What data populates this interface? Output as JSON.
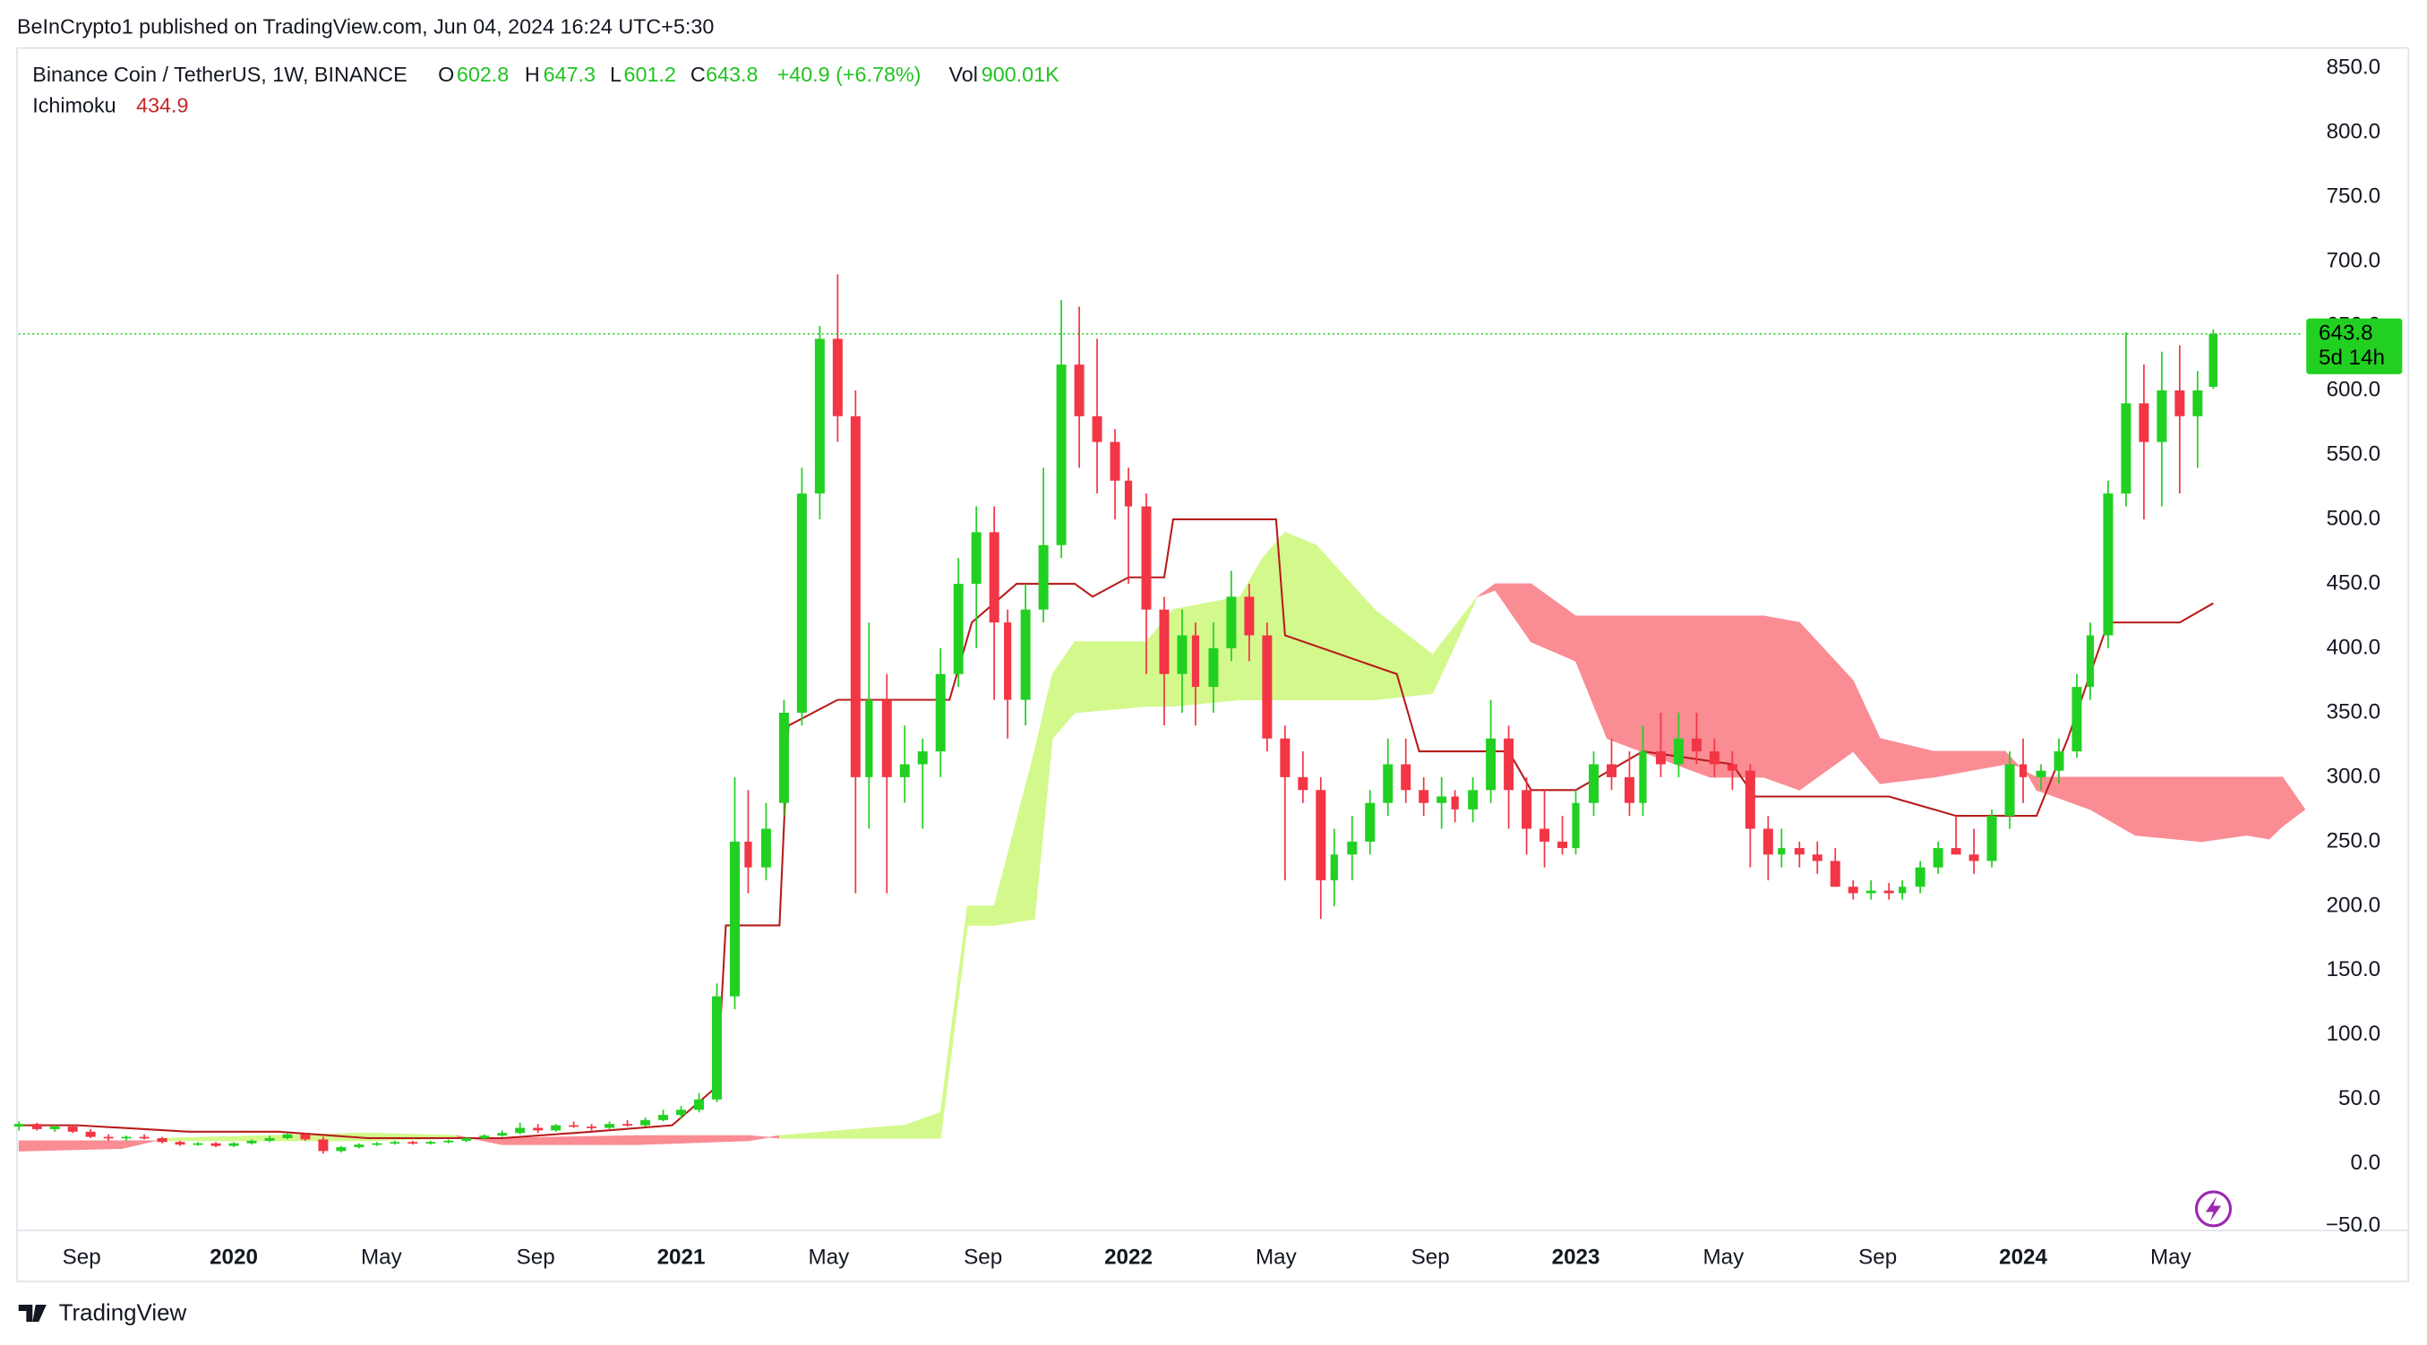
{
  "header": {
    "published": "BeInCrypto1 published on TradingView.com, Jun 04, 2024 16:24 UTC+5:30",
    "footer": "TradingView"
  },
  "chart_data": {
    "type": "candlestick",
    "legend": {
      "symbol": "Binance Coin / TetherUS, 1W, BINANCE",
      "ohlc": [
        {
          "label": "O",
          "value": "602.8"
        },
        {
          "label": "H",
          "value": "647.3"
        },
        {
          "label": "L",
          "value": "601.2"
        },
        {
          "label": "C",
          "value": "643.8"
        }
      ],
      "change": "+40.9 (+6.78%)",
      "volume_label": "Vol",
      "volume": "900.01K",
      "indicator": "Ichimoku",
      "indicator_value": "434.9"
    },
    "xlim": [
      2019.519,
      2024.626
    ],
    "ylim": [
      -51.6,
      865.6
    ],
    "xticks": [
      {
        "value": 2019.66,
        "label": "Sep"
      },
      {
        "value": 2020,
        "label": "2020"
      },
      {
        "value": 2020.33,
        "label": "May"
      },
      {
        "value": 2020.675,
        "label": "Sep"
      },
      {
        "value": 2021,
        "label": "2021"
      },
      {
        "value": 2021.33,
        "label": "May"
      },
      {
        "value": 2021.675,
        "label": "Sep"
      },
      {
        "value": 2022,
        "label": "2022"
      },
      {
        "value": 2022.33,
        "label": "May"
      },
      {
        "value": 2022.675,
        "label": "Sep"
      },
      {
        "value": 2023,
        "label": "2023"
      },
      {
        "value": 2023.33,
        "label": "May"
      },
      {
        "value": 2023.675,
        "label": "Sep"
      },
      {
        "value": 2024,
        "label": "2024"
      },
      {
        "value": 2024.33,
        "label": "May"
      }
    ],
    "yticks": [
      {
        "value": 850,
        "label": "850.0"
      },
      {
        "value": 800,
        "label": "800.0"
      },
      {
        "value": 750,
        "label": "750.0"
      },
      {
        "value": 700,
        "label": "700.0"
      },
      {
        "value": 650,
        "label": "650.0"
      },
      {
        "value": 600,
        "label": "600.0"
      },
      {
        "value": 550,
        "label": "550.0"
      },
      {
        "value": 500,
        "label": "500.0"
      },
      {
        "value": 450,
        "label": "450.0"
      },
      {
        "value": 400,
        "label": "400.0"
      },
      {
        "value": 350,
        "label": "350.0"
      },
      {
        "value": 300,
        "label": "300.0"
      },
      {
        "value": 250,
        "label": "250.0"
      },
      {
        "value": 200,
        "label": "200.0"
      },
      {
        "value": 150,
        "label": "150.0"
      },
      {
        "value": 100,
        "label": "100.0"
      },
      {
        "value": 50,
        "label": "50.0"
      },
      {
        "value": 0,
        "label": "0.0"
      },
      {
        "value": -50,
        "label": "−50.0"
      }
    ],
    "up_color": "#22d022",
    "down_color": "#f23645",
    "last_price": {
      "value": 643.8,
      "label": "643.8",
      "countdown": "5d 14h",
      "color": "#22d022"
    },
    "candles": [
      [
        2019.52,
        29,
        33,
        26,
        31
      ],
      [
        2019.56,
        31,
        32,
        26,
        27
      ],
      [
        2019.6,
        27,
        30,
        25,
        29
      ],
      [
        2019.64,
        29,
        30,
        24,
        25
      ],
      [
        2019.68,
        25,
        27,
        20,
        21
      ],
      [
        2019.72,
        21,
        23,
        18,
        20
      ],
      [
        2019.76,
        20,
        22,
        18,
        21
      ],
      [
        2019.8,
        21,
        23,
        19,
        20
      ],
      [
        2019.84,
        20,
        21,
        16,
        17
      ],
      [
        2019.88,
        17,
        18,
        14,
        15
      ],
      [
        2019.92,
        15,
        17,
        14,
        16
      ],
      [
        2019.96,
        16,
        17,
        13,
        14
      ],
      [
        2020.0,
        14,
        17,
        13,
        16
      ],
      [
        2020.04,
        16,
        19,
        15,
        18
      ],
      [
        2020.08,
        18,
        22,
        17,
        20
      ],
      [
        2020.12,
        20,
        24,
        19,
        23
      ],
      [
        2020.16,
        23,
        24,
        18,
        19
      ],
      [
        2020.2,
        19,
        21,
        8,
        10
      ],
      [
        2020.24,
        10,
        14,
        9,
        13
      ],
      [
        2020.28,
        13,
        16,
        12,
        15
      ],
      [
        2020.32,
        15,
        17,
        14,
        16
      ],
      [
        2020.36,
        16,
        18,
        15,
        17
      ],
      [
        2020.4,
        17,
        18,
        15,
        16
      ],
      [
        2020.44,
        16,
        18,
        15,
        17
      ],
      [
        2020.48,
        17,
        19,
        16,
        18
      ],
      [
        2020.52,
        18,
        21,
        17,
        20
      ],
      [
        2020.56,
        20,
        23,
        19,
        22
      ],
      [
        2020.6,
        22,
        26,
        21,
        24
      ],
      [
        2020.64,
        24,
        32,
        23,
        28
      ],
      [
        2020.68,
        28,
        31,
        24,
        26
      ],
      [
        2020.72,
        26,
        31,
        25,
        30
      ],
      [
        2020.76,
        30,
        33,
        28,
        29
      ],
      [
        2020.8,
        29,
        31,
        26,
        28
      ],
      [
        2020.84,
        28,
        33,
        27,
        31
      ],
      [
        2020.88,
        31,
        34,
        29,
        30
      ],
      [
        2020.92,
        30,
        36,
        29,
        34
      ],
      [
        2020.96,
        34,
        42,
        33,
        38
      ],
      [
        2021.0,
        38,
        45,
        35,
        42
      ],
      [
        2021.04,
        42,
        55,
        40,
        50
      ],
      [
        2021.08,
        50,
        140,
        48,
        130
      ],
      [
        2021.12,
        130,
        300,
        120,
        250
      ],
      [
        2021.15,
        250,
        290,
        210,
        230
      ],
      [
        2021.19,
        230,
        280,
        220,
        260
      ],
      [
        2021.23,
        280,
        360,
        270,
        350
      ],
      [
        2021.27,
        350,
        540,
        340,
        520
      ],
      [
        2021.31,
        520,
        650,
        500,
        640
      ],
      [
        2021.35,
        640,
        690,
        560,
        580
      ],
      [
        2021.39,
        580,
        600,
        210,
        300
      ],
      [
        2021.42,
        300,
        420,
        260,
        360
      ],
      [
        2021.46,
        360,
        380,
        210,
        300
      ],
      [
        2021.5,
        300,
        340,
        280,
        310
      ],
      [
        2021.54,
        310,
        330,
        260,
        320
      ],
      [
        2021.58,
        320,
        400,
        300,
        380
      ],
      [
        2021.62,
        380,
        470,
        370,
        450
      ],
      [
        2021.66,
        450,
        510,
        400,
        490
      ],
      [
        2021.7,
        490,
        510,
        360,
        420
      ],
      [
        2021.73,
        420,
        430,
        330,
        360
      ],
      [
        2021.77,
        360,
        450,
        340,
        430
      ],
      [
        2021.81,
        430,
        540,
        420,
        480
      ],
      [
        2021.85,
        480,
        670,
        470,
        620
      ],
      [
        2021.89,
        620,
        665,
        540,
        580
      ],
      [
        2021.93,
        580,
        640,
        520,
        560
      ],
      [
        2021.97,
        560,
        570,
        500,
        530
      ],
      [
        2022.0,
        530,
        540,
        450,
        510
      ],
      [
        2022.04,
        510,
        520,
        380,
        430
      ],
      [
        2022.08,
        430,
        440,
        340,
        380
      ],
      [
        2022.12,
        380,
        430,
        350,
        410
      ],
      [
        2022.15,
        410,
        420,
        340,
        370
      ],
      [
        2022.19,
        370,
        420,
        350,
        400
      ],
      [
        2022.23,
        400,
        460,
        390,
        440
      ],
      [
        2022.27,
        440,
        450,
        390,
        410
      ],
      [
        2022.31,
        410,
        420,
        320,
        330
      ],
      [
        2022.35,
        330,
        340,
        220,
        300
      ],
      [
        2022.39,
        300,
        320,
        280,
        290
      ],
      [
        2022.43,
        290,
        300,
        190,
        220
      ],
      [
        2022.46,
        220,
        260,
        200,
        240
      ],
      [
        2022.5,
        240,
        270,
        220,
        250
      ],
      [
        2022.54,
        250,
        290,
        240,
        280
      ],
      [
        2022.58,
        280,
        330,
        270,
        310
      ],
      [
        2022.62,
        310,
        330,
        280,
        290
      ],
      [
        2022.66,
        290,
        300,
        270,
        280
      ],
      [
        2022.7,
        280,
        300,
        260,
        285
      ],
      [
        2022.73,
        285,
        290,
        265,
        275
      ],
      [
        2022.77,
        275,
        300,
        265,
        290
      ],
      [
        2022.81,
        290,
        360,
        280,
        330
      ],
      [
        2022.85,
        330,
        340,
        260,
        290
      ],
      [
        2022.89,
        290,
        300,
        240,
        260
      ],
      [
        2022.93,
        260,
        290,
        230,
        250
      ],
      [
        2022.97,
        250,
        270,
        240,
        245
      ],
      [
        2023.0,
        245,
        290,
        240,
        280
      ],
      [
        2023.04,
        280,
        320,
        270,
        310
      ],
      [
        2023.08,
        310,
        330,
        290,
        300
      ],
      [
        2023.12,
        300,
        320,
        270,
        280
      ],
      [
        2023.15,
        280,
        340,
        270,
        320
      ],
      [
        2023.19,
        320,
        350,
        300,
        310
      ],
      [
        2023.23,
        310,
        350,
        300,
        330
      ],
      [
        2023.27,
        330,
        350,
        310,
        320
      ],
      [
        2023.31,
        320,
        330,
        300,
        310
      ],
      [
        2023.35,
        310,
        320,
        290,
        305
      ],
      [
        2023.39,
        305,
        310,
        230,
        260
      ],
      [
        2023.43,
        260,
        270,
        220,
        240
      ],
      [
        2023.46,
        240,
        260,
        230,
        245
      ],
      [
        2023.5,
        245,
        250,
        230,
        240
      ],
      [
        2023.54,
        240,
        250,
        225,
        235
      ],
      [
        2023.58,
        235,
        245,
        215,
        215
      ],
      [
        2023.62,
        215,
        220,
        205,
        210
      ],
      [
        2023.66,
        210,
        220,
        205,
        212
      ],
      [
        2023.7,
        212,
        218,
        205,
        210
      ],
      [
        2023.73,
        210,
        220,
        205,
        215
      ],
      [
        2023.77,
        215,
        235,
        210,
        230
      ],
      [
        2023.81,
        230,
        250,
        225,
        245
      ],
      [
        2023.85,
        245,
        270,
        240,
        240
      ],
      [
        2023.89,
        240,
        260,
        225,
        235
      ],
      [
        2023.93,
        235,
        275,
        230,
        270
      ],
      [
        2023.97,
        270,
        320,
        260,
        310
      ],
      [
        2024.0,
        310,
        330,
        280,
        300
      ],
      [
        2024.04,
        300,
        310,
        290,
        305
      ],
      [
        2024.08,
        305,
        330,
        295,
        320
      ],
      [
        2024.12,
        320,
        380,
        315,
        370
      ],
      [
        2024.15,
        370,
        420,
        360,
        410
      ],
      [
        2024.19,
        410,
        530,
        400,
        520
      ],
      [
        2024.23,
        520,
        645,
        510,
        590
      ],
      [
        2024.27,
        590,
        620,
        500,
        560
      ],
      [
        2024.31,
        560,
        630,
        510,
        600
      ],
      [
        2024.35,
        600,
        635,
        520,
        580
      ],
      [
        2024.39,
        580,
        615,
        540,
        600
      ],
      [
        2024.425,
        602.8,
        647.3,
        601.2,
        643.8
      ]
    ],
    "kijun": {
      "color": "#b71c1c",
      "x": [
        2019.52,
        2019.65,
        2019.9,
        2020.1,
        2020.3,
        2020.6,
        2020.8,
        2020.98,
        2021.08,
        2021.1,
        2021.22,
        2021.24,
        2021.35,
        2021.6,
        2021.65,
        2021.75,
        2021.88,
        2021.92,
        2022.0,
        2022.08,
        2022.1,
        2022.33,
        2022.35,
        2022.6,
        2022.65,
        2022.85,
        2022.9,
        2023.0,
        2023.15,
        2023.35,
        2023.4,
        2023.7,
        2023.85,
        2024.03,
        2024.1,
        2024.19,
        2024.35,
        2024.425
      ],
      "values": [
        30,
        30,
        25,
        25,
        20,
        20,
        25,
        30,
        60,
        185,
        185,
        340,
        360,
        360,
        420,
        450,
        450,
        440,
        455,
        455,
        500,
        500,
        410,
        380,
        320,
        320,
        290,
        290,
        320,
        310,
        285,
        285,
        270,
        270,
        330,
        420,
        420,
        434.9
      ]
    },
    "cloud": {
      "up_color": "#d3f98c",
      "down_color": "#fa8c94",
      "x": [
        2019.52,
        2019.75,
        2019.85,
        2020.3,
        2020.5,
        2020.6,
        2020.9,
        2021.15,
        2021.22,
        2021.5,
        2021.58,
        2021.64,
        2021.7,
        2021.79,
        2021.83,
        2021.88,
        2022.04,
        2022.1,
        2022.25,
        2022.3,
        2022.35,
        2022.42,
        2022.55,
        2022.68,
        2022.78,
        2022.82,
        2022.9,
        2023.0,
        2023.07,
        2023.3,
        2023.42,
        2023.5,
        2023.62,
        2023.68,
        2023.8,
        2023.96,
        2024.0,
        2024.03,
        2024.15,
        2024.25,
        2024.4,
        2024.5,
        2024.55,
        2024.58,
        2024.63
      ],
      "span_a": [
        10,
        12,
        20,
        24,
        22,
        15,
        15,
        18,
        22,
        30,
        40,
        200,
        200,
        320,
        380,
        405,
        405,
        430,
        440,
        470,
        490,
        480,
        430,
        395,
        440,
        445,
        405,
        390,
        330,
        300,
        300,
        290,
        320,
        295,
        300,
        310,
        308,
        290,
        275,
        255,
        250,
        255,
        252,
        262,
        275
      ],
      "span_b": [
        18,
        18,
        18,
        18,
        20,
        20,
        22,
        22,
        20,
        20,
        20,
        185,
        185,
        190,
        330,
        350,
        355,
        355,
        360,
        360,
        360,
        360,
        360,
        365,
        440,
        450,
        450,
        425,
        425,
        425,
        425,
        420,
        375,
        330,
        320,
        320,
        305,
        300,
        300,
        300,
        300,
        300,
        300,
        300,
        275
      ]
    }
  }
}
